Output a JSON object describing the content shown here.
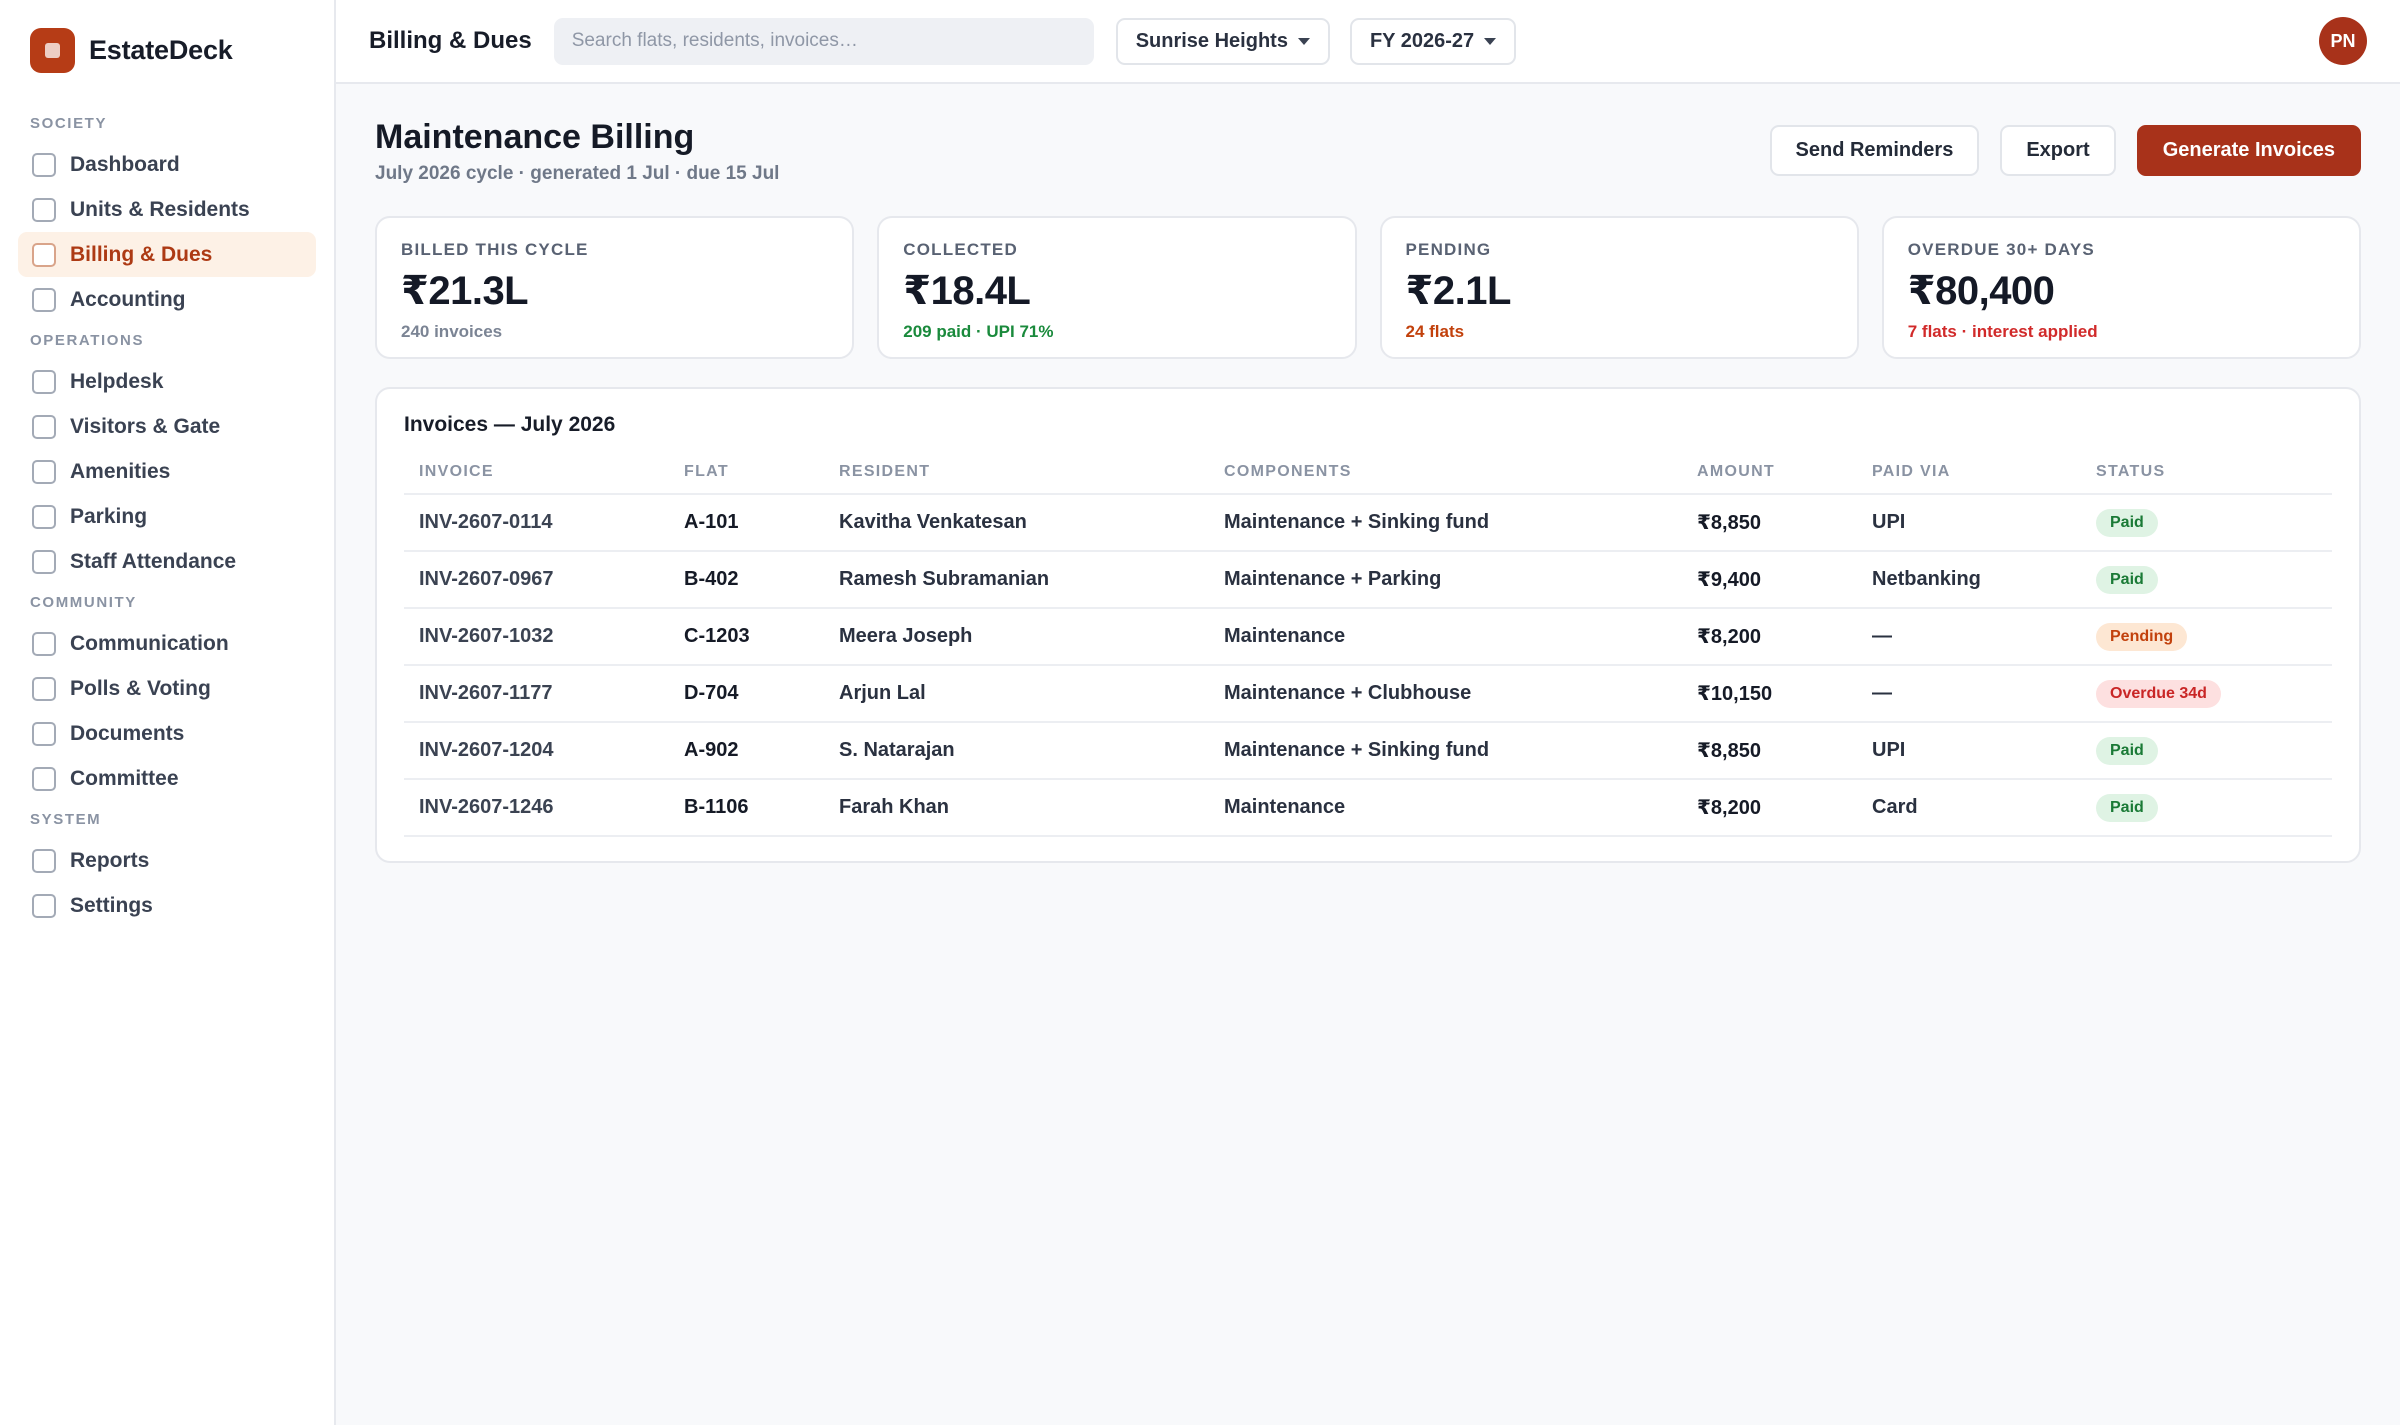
{
  "brand": {
    "name": "EstateDeck"
  },
  "sidebar": {
    "sections": [
      {
        "title": "SOCIETY",
        "items": [
          {
            "label": "Dashboard",
            "active": false
          },
          {
            "label": "Units & Residents",
            "active": false
          },
          {
            "label": "Billing & Dues",
            "active": true
          },
          {
            "label": "Accounting",
            "active": false
          }
        ]
      },
      {
        "title": "OPERATIONS",
        "items": [
          {
            "label": "Helpdesk",
            "active": false
          },
          {
            "label": "Visitors & Gate",
            "active": false
          },
          {
            "label": "Amenities",
            "active": false
          },
          {
            "label": "Parking",
            "active": false
          },
          {
            "label": "Staff Attendance",
            "active": false
          }
        ]
      },
      {
        "title": "COMMUNITY",
        "items": [
          {
            "label": "Communication",
            "active": false
          },
          {
            "label": "Polls & Voting",
            "active": false
          },
          {
            "label": "Documents",
            "active": false
          },
          {
            "label": "Committee",
            "active": false
          }
        ]
      },
      {
        "title": "SYSTEM",
        "items": [
          {
            "label": "Reports",
            "active": false
          },
          {
            "label": "Settings",
            "active": false
          }
        ]
      }
    ]
  },
  "topbar": {
    "title": "Billing & Dues",
    "search_placeholder": "Search flats, residents, invoices…",
    "society_select": "Sunrise Heights",
    "year_select": "FY 2026-27",
    "avatar_initials": "PN"
  },
  "page": {
    "title": "Maintenance Billing",
    "subtitle": "July 2026 cycle · generated 1 Jul · due 15 Jul",
    "actions": {
      "reminders": "Send Reminders",
      "export": "Export",
      "generate": "Generate Invoices"
    }
  },
  "stats": [
    {
      "label": "BILLED THIS CYCLE",
      "value": "₹21.3L",
      "note": "240 invoices",
      "tone": "muted"
    },
    {
      "label": "COLLECTED",
      "value": "₹18.4L",
      "note": "209 paid · UPI 71%",
      "tone": "green"
    },
    {
      "label": "PENDING",
      "value": "₹2.1L",
      "note": "24 flats",
      "tone": "orange"
    },
    {
      "label": "OVERDUE 30+ DAYS",
      "value": "₹80,400",
      "note": "7 flats · interest applied",
      "tone": "red"
    }
  ],
  "invoices": {
    "title": "Invoices — July 2026",
    "columns": [
      "INVOICE",
      "FLAT",
      "RESIDENT",
      "COMPONENTS",
      "AMOUNT",
      "PAID VIA",
      "STATUS"
    ],
    "rows": [
      {
        "invoice": "INV-2607-0114",
        "flat": "A-101",
        "resident": "Kavitha Venkatesan",
        "components": "Maintenance + Sinking fund",
        "amount": "₹8,850",
        "paid_via": "UPI",
        "status": "Paid",
        "status_type": "paid"
      },
      {
        "invoice": "INV-2607-0967",
        "flat": "B-402",
        "resident": "Ramesh Subramanian",
        "components": "Maintenance + Parking",
        "amount": "₹9,400",
        "paid_via": "Netbanking",
        "status": "Paid",
        "status_type": "paid"
      },
      {
        "invoice": "INV-2607-1032",
        "flat": "C-1203",
        "resident": "Meera Joseph",
        "components": "Maintenance",
        "amount": "₹8,200",
        "paid_via": "—",
        "status": "Pending",
        "status_type": "pending"
      },
      {
        "invoice": "INV-2607-1177",
        "flat": "D-704",
        "resident": "Arjun Lal",
        "components": "Maintenance + Clubhouse",
        "amount": "₹10,150",
        "paid_via": "—",
        "status": "Overdue 34d",
        "status_type": "overdue"
      },
      {
        "invoice": "INV-2607-1204",
        "flat": "A-902",
        "resident": "S. Natarajan",
        "components": "Maintenance + Sinking fund",
        "amount": "₹8,850",
        "paid_via": "UPI",
        "status": "Paid",
        "status_type": "paid"
      },
      {
        "invoice": "INV-2607-1246",
        "flat": "B-1106",
        "resident": "Farah Khan",
        "components": "Maintenance",
        "amount": "₹8,200",
        "paid_via": "Card",
        "status": "Paid",
        "status_type": "paid"
      }
    ]
  },
  "colors": {
    "accent": "#a8321a",
    "active_bg": "#fdf1e6",
    "paid": "#1a7a36",
    "pending": "#c2410c",
    "overdue": "#c92626"
  }
}
